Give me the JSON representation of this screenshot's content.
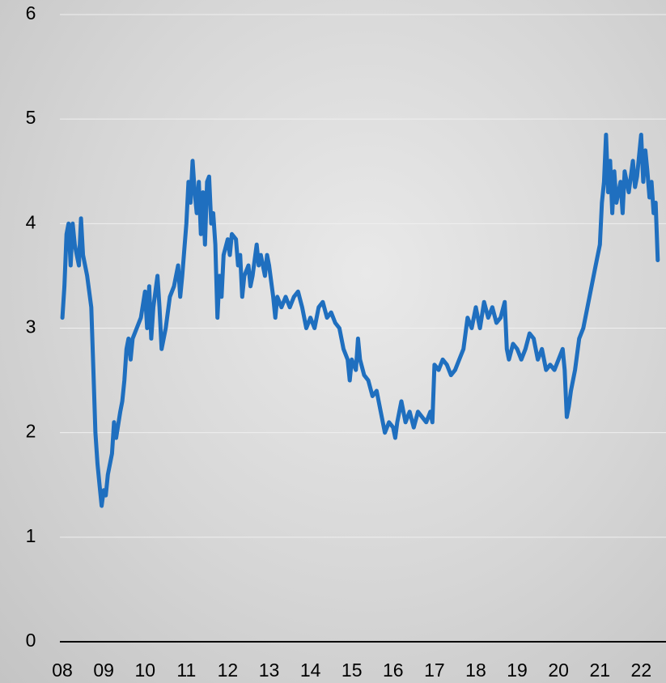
{
  "chart_data": {
    "type": "line",
    "x": [
      2008.0,
      2008.05,
      2008.1,
      2008.15,
      2008.2,
      2008.25,
      2008.3,
      2008.35,
      2008.4,
      2008.45,
      2008.5,
      2008.6,
      2008.7,
      2008.75,
      2008.8,
      2008.85,
      2008.9,
      2008.95,
      2009.0,
      2009.05,
      2009.1,
      2009.2,
      2009.25,
      2009.3,
      2009.4,
      2009.45,
      2009.5,
      2009.55,
      2009.6,
      2009.65,
      2009.7,
      2009.8,
      2009.9,
      2010.0,
      2010.05,
      2010.1,
      2010.15,
      2010.2,
      2010.3,
      2010.35,
      2010.4,
      2010.5,
      2010.6,
      2010.7,
      2010.8,
      2010.85,
      2010.9,
      2011.0,
      2011.05,
      2011.1,
      2011.15,
      2011.2,
      2011.25,
      2011.3,
      2011.35,
      2011.4,
      2011.45,
      2011.5,
      2011.55,
      2011.6,
      2011.65,
      2011.7,
      2011.75,
      2011.8,
      2011.85,
      2011.9,
      2012.0,
      2012.05,
      2012.1,
      2012.2,
      2012.25,
      2012.3,
      2012.35,
      2012.4,
      2012.5,
      2012.55,
      2012.6,
      2012.7,
      2012.75,
      2012.8,
      2012.9,
      2012.95,
      2013.0,
      2013.1,
      2013.15,
      2013.2,
      2013.3,
      2013.4,
      2013.5,
      2013.6,
      2013.7,
      2013.8,
      2013.9,
      2014.0,
      2014.1,
      2014.2,
      2014.3,
      2014.4,
      2014.5,
      2014.6,
      2014.7,
      2014.8,
      2014.9,
      2014.95,
      2015.0,
      2015.1,
      2015.15,
      2015.2,
      2015.3,
      2015.4,
      2015.5,
      2015.6,
      2015.7,
      2015.8,
      2015.9,
      2016.0,
      2016.05,
      2016.1,
      2016.2,
      2016.3,
      2016.4,
      2016.5,
      2016.6,
      2016.7,
      2016.8,
      2016.9,
      2016.95,
      2017.0,
      2017.1,
      2017.2,
      2017.3,
      2017.4,
      2017.5,
      2017.6,
      2017.7,
      2017.8,
      2017.9,
      2018.0,
      2018.1,
      2018.2,
      2018.3,
      2018.4,
      2018.5,
      2018.6,
      2018.7,
      2018.75,
      2018.8,
      2018.9,
      2019.0,
      2019.1,
      2019.2,
      2019.3,
      2019.4,
      2019.5,
      2019.6,
      2019.7,
      2019.8,
      2019.9,
      2020.0,
      2020.1,
      2020.15,
      2020.2,
      2020.25,
      2020.3,
      2020.4,
      2020.5,
      2020.6,
      2020.7,
      2020.8,
      2020.9,
      2021.0,
      2021.05,
      2021.1,
      2021.15,
      2021.2,
      2021.25,
      2021.3,
      2021.35,
      2021.4,
      2021.5,
      2021.55,
      2021.6,
      2021.7,
      2021.8,
      2021.85,
      2021.9,
      2022.0,
      2022.05,
      2022.1,
      2022.15,
      2022.2,
      2022.25,
      2022.3,
      2022.35,
      2022.4
    ],
    "series": [
      {
        "color": "#1f6fbf",
        "values": [
          3.1,
          3.4,
          3.9,
          4.0,
          3.6,
          4.0,
          3.8,
          3.7,
          3.6,
          4.05,
          3.7,
          3.5,
          3.2,
          2.6,
          2.0,
          1.7,
          1.5,
          1.3,
          1.45,
          1.4,
          1.6,
          1.8,
          2.1,
          1.95,
          2.2,
          2.3,
          2.5,
          2.8,
          2.9,
          2.7,
          2.9,
          3.0,
          3.1,
          3.35,
          3.0,
          3.4,
          2.9,
          3.2,
          3.5,
          3.2,
          2.8,
          3.0,
          3.3,
          3.4,
          3.6,
          3.3,
          3.5,
          4.0,
          4.4,
          4.2,
          4.6,
          4.3,
          4.1,
          4.4,
          3.9,
          4.3,
          3.8,
          4.4,
          4.45,
          4.0,
          4.1,
          3.8,
          3.1,
          3.5,
          3.3,
          3.7,
          3.85,
          3.7,
          3.9,
          3.85,
          3.6,
          3.7,
          3.3,
          3.5,
          3.6,
          3.4,
          3.5,
          3.8,
          3.6,
          3.7,
          3.5,
          3.7,
          3.6,
          3.3,
          3.1,
          3.3,
          3.2,
          3.3,
          3.2,
          3.3,
          3.35,
          3.2,
          3.0,
          3.1,
          3.0,
          3.2,
          3.25,
          3.1,
          3.15,
          3.05,
          3.0,
          2.8,
          2.7,
          2.5,
          2.7,
          2.6,
          2.9,
          2.7,
          2.55,
          2.5,
          2.35,
          2.4,
          2.2,
          2.0,
          2.1,
          2.05,
          1.95,
          2.1,
          2.3,
          2.1,
          2.2,
          2.05,
          2.2,
          2.15,
          2.1,
          2.2,
          2.1,
          2.65,
          2.6,
          2.7,
          2.65,
          2.55,
          2.6,
          2.7,
          2.8,
          3.1,
          3.0,
          3.2,
          3.0,
          3.25,
          3.1,
          3.2,
          3.05,
          3.1,
          3.25,
          2.8,
          2.7,
          2.85,
          2.8,
          2.7,
          2.8,
          2.95,
          2.9,
          2.7,
          2.8,
          2.6,
          2.65,
          2.6,
          2.7,
          2.8,
          2.6,
          2.15,
          2.25,
          2.4,
          2.6,
          2.9,
          3.0,
          3.2,
          3.4,
          3.6,
          3.8,
          4.2,
          4.4,
          4.85,
          4.3,
          4.6,
          4.1,
          4.5,
          4.2,
          4.4,
          4.1,
          4.5,
          4.3,
          4.6,
          4.35,
          4.45,
          4.85,
          4.4,
          4.7,
          4.5,
          4.25,
          4.4,
          4.1,
          4.2,
          3.65
        ]
      }
    ],
    "xlim": [
      2007.94,
      2022.6
    ],
    "xticks": [
      {
        "value": 2008,
        "label": "08"
      },
      {
        "value": 2009,
        "label": "09"
      },
      {
        "value": 2010,
        "label": "10"
      },
      {
        "value": 2011,
        "label": "11"
      },
      {
        "value": 2012,
        "label": "12"
      },
      {
        "value": 2013,
        "label": "13"
      },
      {
        "value": 2014,
        "label": "14"
      },
      {
        "value": 2015,
        "label": "15"
      },
      {
        "value": 2016,
        "label": "16"
      },
      {
        "value": 2017,
        "label": "17"
      },
      {
        "value": 2018,
        "label": "18"
      },
      {
        "value": 2019,
        "label": "19"
      },
      {
        "value": 2020,
        "label": "20"
      },
      {
        "value": 2021,
        "label": "21"
      },
      {
        "value": 2022,
        "label": "22"
      }
    ],
    "ylim": [
      0,
      6
    ],
    "yticks": [
      0,
      1,
      2,
      3,
      4,
      5,
      6
    ],
    "grid": true
  }
}
